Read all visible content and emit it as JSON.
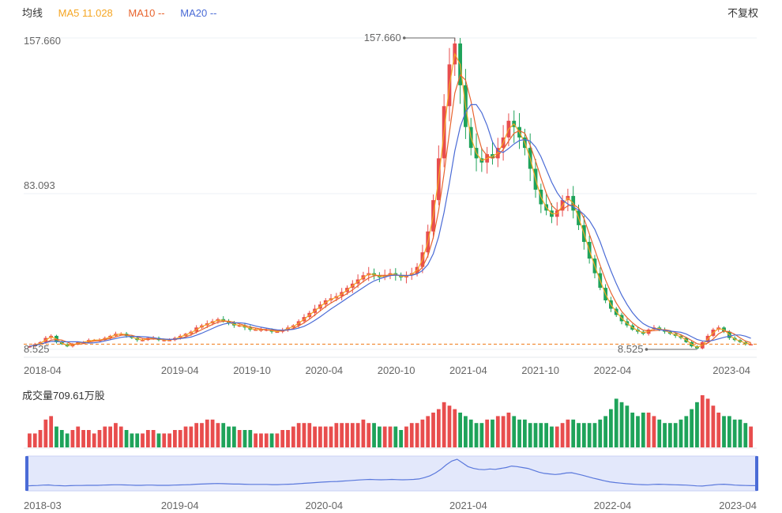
{
  "header": {
    "legend_title": "均线",
    "ma5_label": "MA5 11.028",
    "ma10_label": "MA10 --",
    "ma20_label": "MA20 --",
    "adjust_label": "不复权"
  },
  "volume": {
    "label": "成交量709.61万股"
  },
  "colors": {
    "up": "#e84d4d",
    "down": "#1ea35a",
    "ma5": "#f5a623",
    "ma10": "#e8642e",
    "ma20": "#4a6bd6",
    "ref": "#f07a16",
    "navigator": "#e3e8fb"
  },
  "chart_data": [
    {
      "type": "candlestick",
      "y_ticks": [
        "157.660",
        "83.093",
        "8.525"
      ],
      "ylim": [
        8.525,
        157.66
      ],
      "x_ticks": [
        "2018-04",
        "2019-04",
        "2019-10",
        "2020-04",
        "2020-10",
        "2021-04",
        "2021-10",
        "2022-04",
        "2023-04"
      ],
      "max_annotation": "157.660",
      "min_annotation": "8.525",
      "max_value": 157.66,
      "min_value": 8.525,
      "last_close": 11.03,
      "close_series": [
        10,
        11,
        12,
        14,
        15,
        12,
        11,
        10,
        11,
        12,
        12,
        13,
        13,
        13,
        14,
        15,
        16,
        16,
        15,
        14,
        13,
        13,
        14,
        14,
        13,
        13,
        13,
        14,
        15,
        16,
        17,
        19,
        20,
        21,
        22,
        23,
        22,
        21,
        20,
        20,
        19,
        18,
        18,
        18,
        18,
        17,
        17,
        18,
        19,
        20,
        22,
        24,
        26,
        28,
        30,
        32,
        33,
        34,
        36,
        38,
        40,
        42,
        44,
        45,
        44,
        43,
        44,
        45,
        44,
        43,
        44,
        45,
        48,
        55,
        65,
        80,
        100,
        125,
        145,
        155,
        135,
        115,
        105,
        100,
        98,
        102,
        100,
        105,
        110,
        118,
        115,
        110,
        105,
        95,
        85,
        78,
        75,
        72,
        75,
        80,
        82,
        75,
        68,
        60,
        52,
        45,
        38,
        32,
        28,
        25,
        22,
        20,
        18,
        17,
        16,
        18,
        19,
        18,
        17,
        16,
        15,
        14,
        12,
        10,
        9,
        12,
        15,
        18,
        19,
        17,
        14,
        13,
        12,
        11,
        11
      ]
    },
    {
      "type": "bar",
      "name": "成交量",
      "values": [
        4,
        4,
        5,
        8,
        9,
        6,
        5,
        4,
        5,
        6,
        5,
        5,
        4,
        5,
        6,
        6,
        7,
        6,
        5,
        4,
        4,
        4,
        5,
        5,
        4,
        4,
        4,
        5,
        5,
        6,
        6,
        7,
        7,
        8,
        8,
        7,
        7,
        6,
        6,
        5,
        5,
        5,
        4,
        4,
        4,
        4,
        4,
        5,
        5,
        6,
        7,
        7,
        7,
        6,
        6,
        6,
        6,
        7,
        7,
        7,
        7,
        7,
        8,
        7,
        7,
        6,
        6,
        6,
        6,
        5,
        6,
        7,
        7,
        8,
        9,
        10,
        11,
        13,
        12,
        11,
        10,
        9,
        8,
        7,
        7,
        8,
        8,
        9,
        9,
        10,
        9,
        8,
        8,
        7,
        7,
        7,
        7,
        6,
        6,
        7,
        8,
        8,
        7,
        7,
        7,
        7,
        8,
        9,
        11,
        14,
        13,
        12,
        10,
        9,
        10,
        10,
        9,
        8,
        7,
        7,
        7,
        8,
        9,
        11,
        13,
        15,
        14,
        12,
        10,
        9,
        9,
        8,
        8,
        7,
        6
      ]
    }
  ],
  "navigator": {
    "x_ticks": [
      "2018-03",
      "2019-04",
      "2020-04",
      "2021-04",
      "2022-04",
      "2023-04"
    ]
  }
}
